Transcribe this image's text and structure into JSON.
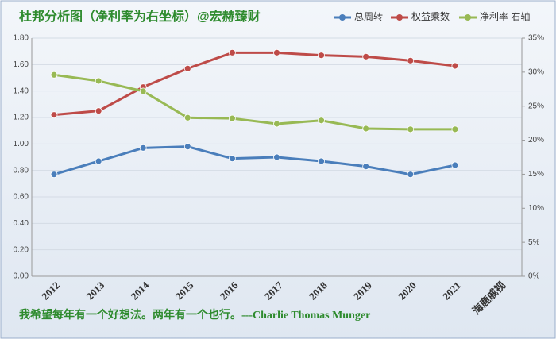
{
  "chart_data": {
    "type": "line",
    "title": "杜邦分析图（净利率为右坐标）@宏赫臻财",
    "footnote": "我希望每年有一个好想法。两年有一个也行。---Charlie Thomas Munger",
    "categories": [
      "2012",
      "2013",
      "2014",
      "2015",
      "2016",
      "2017",
      "2018",
      "2019",
      "2020",
      "2021",
      "海鹿戚视"
    ],
    "series": [
      {
        "name": "总周转",
        "color": "#4a7ebb",
        "values": [
          0.77,
          0.87,
          0.97,
          0.98,
          0.89,
          0.9,
          0.87,
          0.83,
          0.77,
          0.84,
          null
        ]
      },
      {
        "name": "权益乘数",
        "color": "#be4b48",
        "values": [
          1.22,
          1.25,
          1.43,
          1.57,
          1.69,
          1.69,
          1.67,
          1.66,
          1.63,
          1.59,
          null
        ]
      },
      {
        "name": "净利率 右轴",
        "color": "#98b954",
        "axis": "y2",
        "values": [
          29.6,
          28.7,
          27.2,
          23.3,
          23.2,
          22.4,
          22.9,
          21.7,
          21.6,
          21.6,
          null
        ]
      }
    ],
    "ylim": [
      0,
      1.8
    ],
    "yticks": [
      {
        "value": 0,
        "label": "0.00"
      },
      {
        "value": 0.2,
        "label": "0.20"
      },
      {
        "value": 0.4,
        "label": "0.40"
      },
      {
        "value": 0.6,
        "label": "0.60"
      },
      {
        "value": 0.8,
        "label": "0.80"
      },
      {
        "value": 1.0,
        "label": "1.00"
      },
      {
        "value": 1.2,
        "label": "1.20"
      },
      {
        "value": 1.4,
        "label": "1.40"
      },
      {
        "value": 1.6,
        "label": "1.60"
      },
      {
        "value": 1.8,
        "label": "1.80"
      }
    ],
    "y2lim": [
      0,
      35
    ],
    "y2ticks": [
      {
        "value": 0,
        "label": "0%"
      },
      {
        "value": 5,
        "label": "5%"
      },
      {
        "value": 10,
        "label": "10%"
      },
      {
        "value": 15,
        "label": "15%"
      },
      {
        "value": 20,
        "label": "20%"
      },
      {
        "value": 25,
        "label": "25%"
      },
      {
        "value": 30,
        "label": "30%"
      },
      {
        "value": 35,
        "label": "35%"
      }
    ],
    "grid": true
  }
}
